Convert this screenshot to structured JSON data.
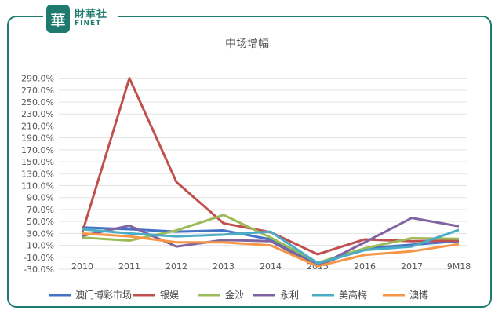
{
  "logo": {
    "cn": "財華社",
    "en": "FINET",
    "seal": "華"
  },
  "chart_data": {
    "type": "line",
    "title": "中场增幅",
    "categories": [
      "2010",
      "2011",
      "2012",
      "2013",
      "2014",
      "2015",
      "2016",
      "2017",
      "9M18"
    ],
    "yticks": [
      "290.0%",
      "270.0%",
      "250.0%",
      "230.0%",
      "210.0%",
      "190.0%",
      "170.0%",
      "150.0%",
      "130.0%",
      "110.0%",
      "90.0%",
      "70.0%",
      "50.0%",
      "30.0%",
      "10.0%",
      "-10.0%",
      "-30.0%"
    ],
    "ylim": [
      -30,
      300
    ],
    "grid": true,
    "legend_position": "bottom",
    "series": [
      {
        "name": "澳门博彩市场",
        "color": "#4472c4",
        "values": [
          40,
          37,
          33,
          35,
          20,
          -23,
          5,
          11,
          17
        ]
      },
      {
        "name": "银娱",
        "color": "#c0504d",
        "values": [
          32,
          290,
          116,
          47,
          32,
          -5,
          20,
          17,
          18
        ]
      },
      {
        "name": "金沙",
        "color": "#9bbb59",
        "values": [
          23,
          18,
          35,
          61,
          23,
          -19,
          5,
          22,
          21
        ]
      },
      {
        "name": "永利",
        "color": "#8064a2",
        "values": [
          26,
          43,
          8,
          19,
          17,
          -25,
          15,
          56,
          42
        ]
      },
      {
        "name": "美高梅",
        "color": "#4bacc6",
        "values": [
          37,
          30,
          25,
          28,
          33,
          -20,
          2,
          8,
          36
        ]
      },
      {
        "name": "澳博",
        "color": "#f79646",
        "values": [
          30,
          25,
          15,
          15,
          10,
          -25,
          -6,
          0,
          12
        ]
      }
    ]
  }
}
